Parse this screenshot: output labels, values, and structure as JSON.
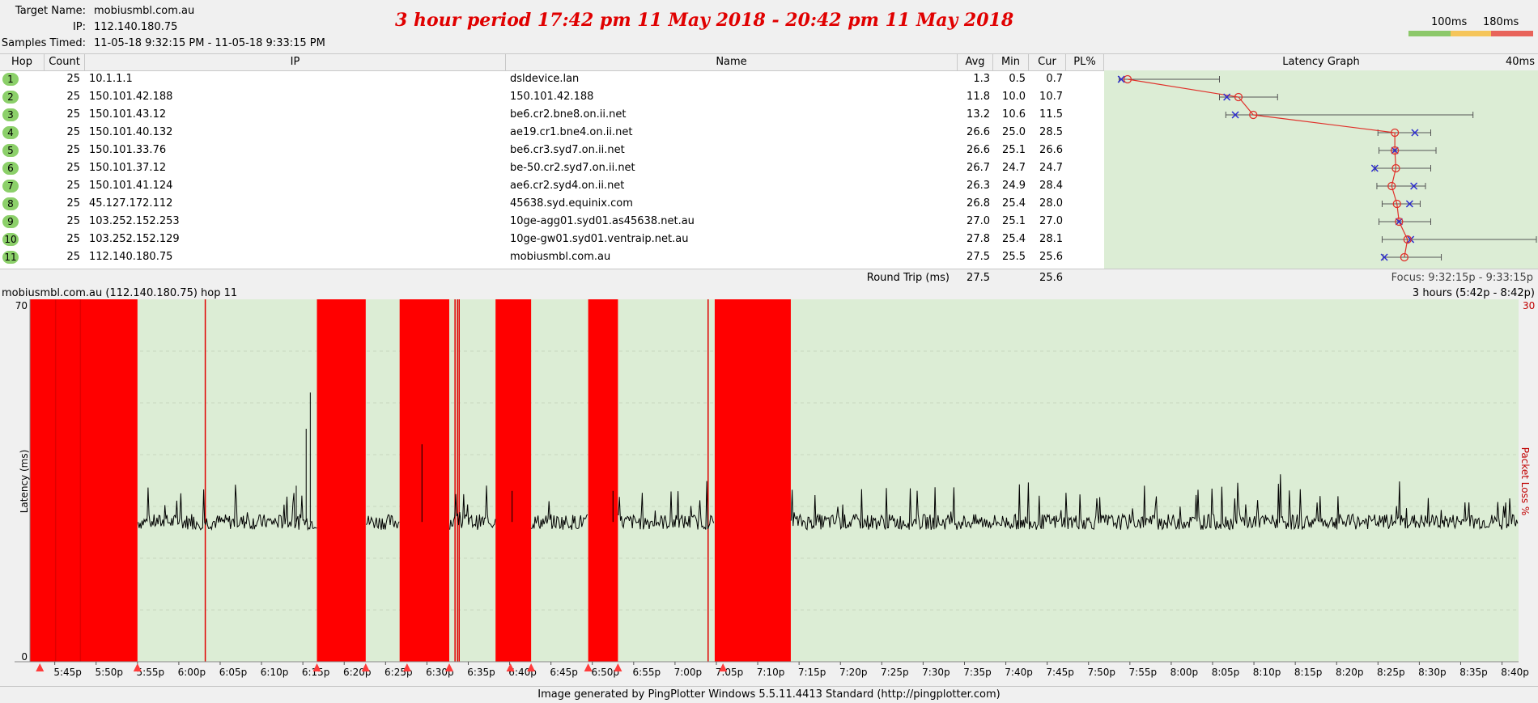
{
  "header": {
    "target_label": "Target Name:",
    "target_value": "mobiusmbl.com.au",
    "ip_label": "IP:",
    "ip_value": "112.140.180.75",
    "samples_label": "Samples Timed:",
    "samples_value": "11-05-18 9:32:15 PM - 11-05-18 9:33:15 PM",
    "title": "3 hour period 17:42 pm 11 May 2018 - 20:42 pm 11 May 2018"
  },
  "legend": {
    "label_100": "100ms",
    "label_180": "180ms",
    "colors": [
      "#8cc86a",
      "#f5c55a",
      "#e8635a"
    ]
  },
  "table": {
    "columns": {
      "hop": "Hop",
      "count": "Count",
      "ip": "IP",
      "name": "Name",
      "avg": "Avg",
      "min": "Min",
      "cur": "Cur",
      "pl": "PL%",
      "latency_graph": "Latency Graph",
      "scale": "40ms"
    },
    "rows": [
      {
        "hop": "1",
        "count": "25",
        "ip": "10.1.1.1",
        "name": "dsldevice.lan",
        "avg": "1.3",
        "min": "0.5",
        "cur": "0.7",
        "pl": ""
      },
      {
        "hop": "2",
        "count": "25",
        "ip": "150.101.42.188",
        "name": "150.101.42.188",
        "avg": "11.8",
        "min": "10.0",
        "cur": "10.7",
        "pl": ""
      },
      {
        "hop": "3",
        "count": "25",
        "ip": "150.101.43.12",
        "name": "be6.cr2.bne8.on.ii.net",
        "avg": "13.2",
        "min": "10.6",
        "cur": "11.5",
        "pl": ""
      },
      {
        "hop": "4",
        "count": "25",
        "ip": "150.101.40.132",
        "name": "ae19.cr1.bne4.on.ii.net",
        "avg": "26.6",
        "min": "25.0",
        "cur": "28.5",
        "pl": ""
      },
      {
        "hop": "5",
        "count": "25",
        "ip": "150.101.33.76",
        "name": "be6.cr3.syd7.on.ii.net",
        "avg": "26.6",
        "min": "25.1",
        "cur": "26.6",
        "pl": ""
      },
      {
        "hop": "6",
        "count": "25",
        "ip": "150.101.37.12",
        "name": "be-50.cr2.syd7.on.ii.net",
        "avg": "26.7",
        "min": "24.7",
        "cur": "24.7",
        "pl": ""
      },
      {
        "hop": "7",
        "count": "25",
        "ip": "150.101.41.124",
        "name": "ae6.cr2.syd4.on.ii.net",
        "avg": "26.3",
        "min": "24.9",
        "cur": "28.4",
        "pl": ""
      },
      {
        "hop": "8",
        "count": "25",
        "ip": "45.127.172.112",
        "name": "45638.syd.equinix.com",
        "avg": "26.8",
        "min": "25.4",
        "cur": "28.0",
        "pl": ""
      },
      {
        "hop": "9",
        "count": "25",
        "ip": "103.252.152.253",
        "name": "10ge-agg01.syd01.as45638.net.au",
        "avg": "27.0",
        "min": "25.1",
        "cur": "27.0",
        "pl": ""
      },
      {
        "hop": "10",
        "count": "25",
        "ip": "103.252.152.129",
        "name": "10ge-gw01.syd01.ventraip.net.au",
        "avg": "27.8",
        "min": "25.4",
        "cur": "28.1",
        "pl": ""
      },
      {
        "hop": "11",
        "count": "25",
        "ip": "112.140.180.75",
        "name": "mobiusmbl.com.au",
        "avg": "27.5",
        "min": "25.5",
        "cur": "25.6",
        "pl": ""
      }
    ],
    "round_trip_label": "Round Trip (ms)",
    "round_trip_avg": "27.5",
    "round_trip_cur": "25.6",
    "focus": "Focus: 9:32:15p - 9:33:15p"
  },
  "chart_data": [
    {
      "type": "scatter",
      "title": "Latency Graph",
      "scale_label": "40ms",
      "x_unit": "ms",
      "xlim": [
        0,
        40
      ],
      "categories": [
        "1",
        "2",
        "3",
        "4",
        "5",
        "6",
        "7",
        "8",
        "9",
        "10",
        "11"
      ],
      "avg": [
        1.3,
        11.8,
        13.2,
        26.6,
        26.6,
        26.7,
        26.3,
        26.8,
        27.0,
        27.8,
        27.5
      ],
      "min": [
        0.5,
        10.0,
        10.6,
        25.0,
        25.1,
        24.7,
        24.9,
        25.4,
        25.1,
        25.4,
        25.5
      ],
      "cur": [
        0.7,
        10.7,
        11.5,
        28.5,
        26.6,
        24.7,
        28.4,
        28.0,
        27.0,
        28.1,
        25.6
      ],
      "max": [
        10.0,
        15.5,
        34.0,
        30.0,
        30.5,
        30.0,
        29.5,
        29.0,
        30.0,
        40.0,
        31.0
      ]
    },
    {
      "type": "line",
      "title": "mobiusmbl.com.au (112.140.180.75) hop 11",
      "range_label": "3 hours (5:42p - 8:42p)",
      "ylabel": "Latency (ms)",
      "y2label": "Packet Loss %",
      "ylim": [
        0,
        70
      ],
      "y_tick_top": "70",
      "y_tick_bottom": "0",
      "y2_tick_top": "30",
      "xlim_minutes": [
        342,
        522
      ],
      "x_ticks": [
        "5:45p",
        "5:50p",
        "5:55p",
        "6:00p",
        "6:05p",
        "6:10p",
        "6:15p",
        "6:20p",
        "6:25p",
        "6:30p",
        "6:35p",
        "6:40p",
        "6:45p",
        "6:50p",
        "6:55p",
        "7:00p",
        "7:05p",
        "7:10p",
        "7:15p",
        "7:20p",
        "7:25p",
        "7:30p",
        "7:35p",
        "7:40p",
        "7:45p",
        "7:50p",
        "7:55p",
        "8:00p",
        "8:05p",
        "8:10p",
        "8:15p",
        "8:20p",
        "8:25p",
        "8:30p",
        "8:35p",
        "8:40p"
      ],
      "x_tick_minutes": [
        345,
        350,
        355,
        360,
        365,
        370,
        375,
        380,
        385,
        390,
        395,
        400,
        405,
        410,
        415,
        420,
        425,
        430,
        435,
        440,
        445,
        450,
        455,
        460,
        465,
        470,
        475,
        480,
        485,
        490,
        495,
        500,
        505,
        510,
        515,
        520
      ],
      "loss_periods_minutes": [
        [
          342,
          355.0
        ],
        [
          376.7,
          382.6
        ],
        [
          386.7,
          392.7
        ],
        [
          398.3,
          402.6
        ],
        [
          409.5,
          413.1
        ],
        [
          424.8,
          434.0
        ]
      ],
      "loss_lines_minutes": [
        345.1,
        348.1,
        363.2,
        393.4,
        393.7,
        393.9,
        424.0
      ],
      "baseline_latency": 27,
      "latency_spikes": [
        {
          "t": 375.9,
          "v": 52
        },
        {
          "t": 375.4,
          "v": 45
        },
        {
          "t": 374.2,
          "v": 34
        },
        {
          "t": 389.4,
          "v": 42
        },
        {
          "t": 400.3,
          "v": 33
        },
        {
          "t": 412.5,
          "v": 33
        }
      ],
      "event_markers_minutes": [
        343.2,
        355.0,
        376.7,
        382.6,
        387.6,
        392.7,
        400.1,
        402.6,
        409.5,
        413.1,
        425.8
      ]
    }
  ],
  "footer": "Image generated by PingPlotter Windows 5.5.11.4413 Standard (http://pingplotter.com)"
}
